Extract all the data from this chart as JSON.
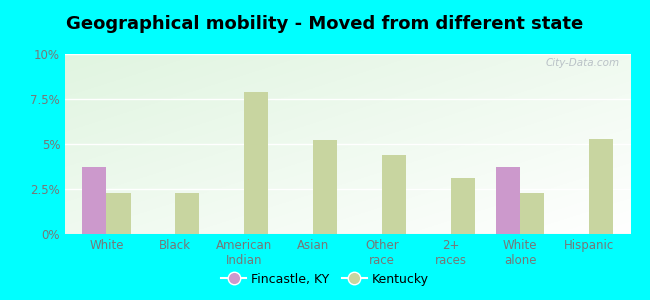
{
  "title": "Geographical mobility - Moved from different state",
  "categories": [
    "White",
    "Black",
    "American\nIndian",
    "Asian",
    "Other\nrace",
    "2+\nraces",
    "White\nalone",
    "Hispanic"
  ],
  "fincastle_values": [
    3.7,
    0.0,
    0.0,
    0.0,
    0.0,
    0.0,
    3.7,
    0.0
  ],
  "kentucky_values": [
    2.3,
    2.3,
    7.9,
    5.2,
    4.4,
    3.1,
    2.3,
    5.3
  ],
  "fincastle_color": "#cc99cc",
  "kentucky_color": "#c8d5a0",
  "background_outer": "#00ffff",
  "ylim": [
    0,
    10
  ],
  "yticks": [
    0,
    2.5,
    5.0,
    7.5,
    10.0
  ],
  "ytick_labels": [
    "0%",
    "2.5%",
    "5%",
    "7.5%",
    "10%"
  ],
  "bar_width": 0.35,
  "title_fontsize": 13,
  "tick_fontsize": 8.5,
  "legend_fontsize": 9,
  "watermark": "City-Data.com"
}
